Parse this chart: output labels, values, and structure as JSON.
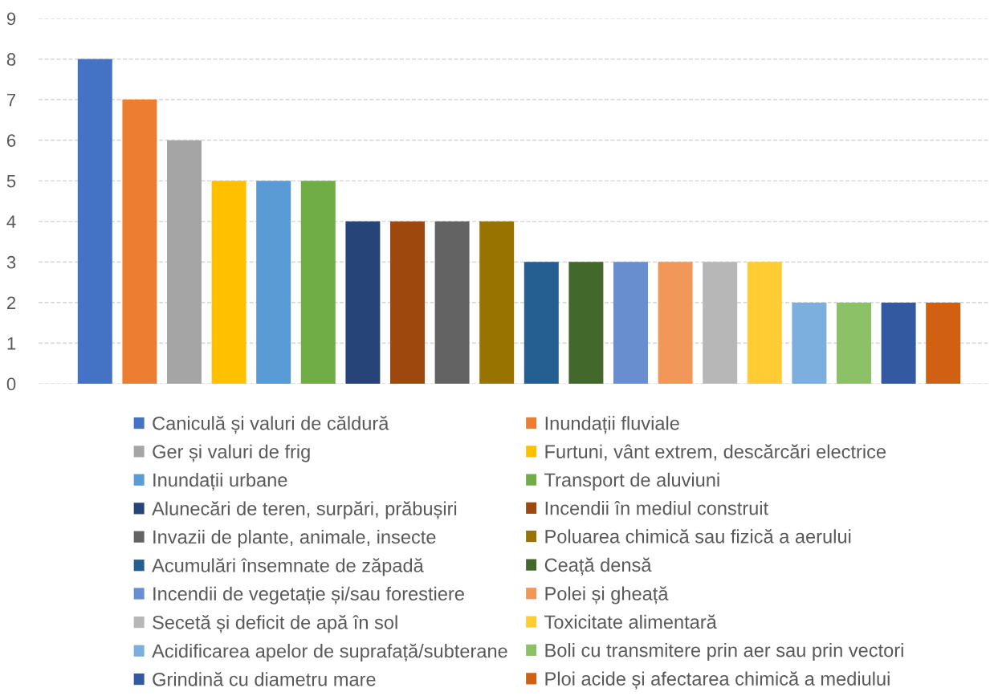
{
  "chart_data": {
    "type": "bar",
    "categories": [
      null
    ],
    "series": [
      {
        "name": "Caniculă și valuri de căldură",
        "color": "#4472c4",
        "values": [
          8
        ]
      },
      {
        "name": "Inundații fluviale",
        "color": "#ed7d31",
        "values": [
          7
        ]
      },
      {
        "name": "Ger și valuri de frig",
        "color": "#a5a5a5",
        "values": [
          6
        ]
      },
      {
        "name": "Furtuni, vânt extrem, descărcări electrice",
        "color": "#ffc000",
        "values": [
          5
        ]
      },
      {
        "name": "Inundații urbane",
        "color": "#5b9bd5",
        "values": [
          5
        ]
      },
      {
        "name": "Transport de aluviuni",
        "color": "#70ad47",
        "values": [
          5
        ]
      },
      {
        "name": "Alunecări de teren, surpări, prăbușiri",
        "color": "#264478",
        "values": [
          4
        ]
      },
      {
        "name": "Incendii în mediul construit",
        "color": "#9e480e",
        "values": [
          4
        ]
      },
      {
        "name": "Invazii de plante, animale, insecte",
        "color": "#636363",
        "values": [
          4
        ]
      },
      {
        "name": "Poluarea chimică sau fizică a aerului",
        "color": "#997300",
        "values": [
          4
        ]
      },
      {
        "name": "Acumulări însemnate de zăpadă",
        "color": "#255e91",
        "values": [
          3
        ]
      },
      {
        "name": "Ceață densă",
        "color": "#43682b",
        "values": [
          3
        ]
      },
      {
        "name": "Incendii de vegetație și/sau forestiere",
        "color": "#698ed0",
        "values": [
          3
        ]
      },
      {
        "name": "Polei și gheață",
        "color": "#f1975a",
        "values": [
          3
        ]
      },
      {
        "name": "Secetă și deficit de apă în sol",
        "color": "#b7b7b7",
        "values": [
          3
        ]
      },
      {
        "name": "Toxicitate alimentară",
        "color": "#ffcd33",
        "values": [
          3
        ]
      },
      {
        "name": "Acidificarea apelor de suprafață/subterane",
        "color": "#7cafdd",
        "values": [
          2
        ]
      },
      {
        "name": "Boli cu transmitere prin aer sau prin vectori",
        "color": "#8cc168",
        "values": [
          2
        ]
      },
      {
        "name": "Grindină cu diametru mare",
        "color": "#335aa1",
        "values": [
          2
        ]
      },
      {
        "name": "Ploi acide și afectarea chimică a mediului",
        "color": "#d26012",
        "values": [
          2
        ]
      }
    ],
    "ylim": [
      0,
      9
    ],
    "yticks": [
      0,
      1,
      2,
      3,
      4,
      5,
      6,
      7,
      8,
      9
    ],
    "grid": "y",
    "legend": "bottom",
    "tick_labels": "y"
  }
}
